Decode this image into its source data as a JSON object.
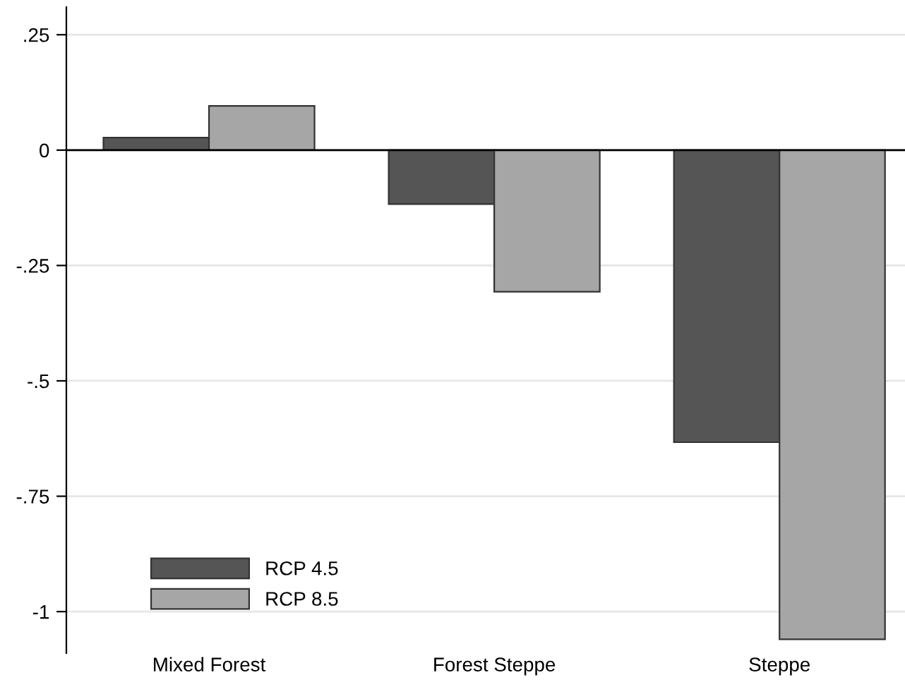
{
  "chart_data": {
    "type": "bar",
    "categories": [
      "Mixed Forest",
      "Forest Steppe",
      "Steppe"
    ],
    "series": [
      {
        "name": "RCP 4.5",
        "color": "#555555",
        "values": [
          0.027,
          -0.117,
          -0.633
        ]
      },
      {
        "name": "RCP 8.5",
        "color": "#a6a6a6",
        "values": [
          0.096,
          -0.307,
          -1.06
        ]
      }
    ],
    "ylim": [
      -1.09,
      0.31
    ],
    "yticks": [
      {
        "value": 0.25,
        "label": ".25"
      },
      0,
      {
        "value": -0.25,
        "label": "-.25"
      },
      {
        "value": -0.5,
        "label": "-.5"
      },
      {
        "value": -0.75,
        "label": "-.75"
      },
      {
        "value": -1,
        "label": "-1"
      }
    ],
    "ref_lines": [
      {
        "axis": "y",
        "value": 0,
        "color": "#000000"
      }
    ],
    "grid": "y",
    "legend": "bottom left"
  }
}
